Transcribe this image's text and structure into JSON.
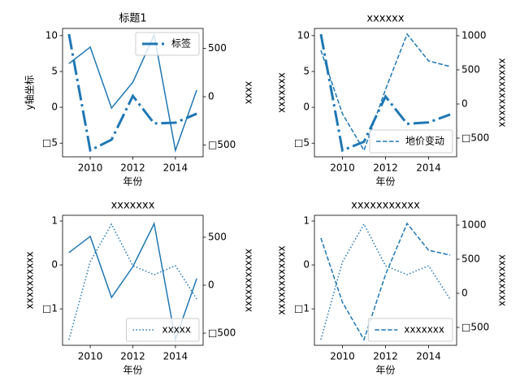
{
  "chart_data": [
    {
      "type": "line",
      "title": "标题1",
      "xlabel": "年份",
      "ylabel": "y轴坐标",
      "y2label": "xxxx",
      "x": [
        2009,
        2010,
        2011,
        2012,
        2013,
        2014,
        2015
      ],
      "xlim": [
        2008.7,
        2015.3
      ],
      "xticks": [
        2010,
        2012,
        2014
      ],
      "ylim": [
        -6.9,
        11.0
      ],
      "yticks": [
        {
          "value": -5,
          "label": "□5"
        },
        0,
        5,
        10
      ],
      "y2lim": [
        -622,
        706
      ],
      "y2ticks": [
        {
          "value": -500,
          "label": "□500"
        },
        0,
        500
      ],
      "legend": "upper right",
      "series": [
        {
          "color": "#1f77b4",
          "style": "solid",
          "width": 1.5,
          "values": [
            6.1,
            8.4,
            -0.1,
            3.5,
            10.1,
            -6.0,
            2.4
          ]
        },
        {
          "name": "标签",
          "color": "#1f77b4",
          "style": "dashdot",
          "width": 3,
          "axis": "y2",
          "values": [
            647,
            -555,
            -445,
            8,
            -277,
            -269,
            -176
          ]
        }
      ]
    },
    {
      "type": "line",
      "title": "xxxxxx",
      "xlabel": "年份",
      "ylabel": "xxxxxxx",
      "y2label": "xxxxxxxxxxxx",
      "x": [
        2009,
        2010,
        2011,
        2012,
        2013,
        2014,
        2015
      ],
      "xlim": [
        2008.7,
        2015.3
      ],
      "xticks": [
        2010,
        2012,
        2014
      ],
      "ylim": [
        -6.9,
        11.0
      ],
      "yticks": [
        {
          "value": -5,
          "label": "□5"
        },
        0,
        5,
        10
      ],
      "y2lim": [
        -774,
        1107
      ],
      "y2ticks": [
        {
          "value": -500,
          "label": "□500"
        },
        0,
        500,
        1000
      ],
      "legend": "lower right",
      "series": [
        {
          "color": "#1f77b4",
          "style": "dashdot",
          "width": 3,
          "values": [
            10.2,
            -6.0,
            -4.8,
            1.5,
            -2.3,
            -2.1,
            -1.0
          ]
        },
        {
          "name": "地价变动",
          "color": "#1f77b4",
          "style": "dashed",
          "width": 1.5,
          "axis": "y2",
          "values": [
            786,
            -143,
            -679,
            214,
            1024,
            631,
            548
          ]
        }
      ]
    },
    {
      "type": "line",
      "title": "xxxxxxx",
      "xlabel": "年份",
      "ylabel": "xxxxxxxxxx",
      "y2label": "xxxxxxxxxxx",
      "x": [
        2009,
        2010,
        2011,
        2012,
        2013,
        2014,
        2015
      ],
      "xlim": [
        2008.7,
        2015.3
      ],
      "xticks": [
        2010,
        2012,
        2014
      ],
      "ylim": [
        -1.83,
        1.13
      ],
      "yticks": [
        {
          "value": -1,
          "label": "□1"
        },
        0,
        1
      ],
      "y2lim": [
        -627,
        729
      ],
      "y2ticks": [
        {
          "value": -500,
          "label": "□500"
        },
        0,
        500
      ],
      "legend": "lower right",
      "series": [
        {
          "color": "#1f77b4",
          "style": "solid",
          "width": 1.5,
          "values": [
            0.28,
            0.65,
            -0.74,
            -0.04,
            0.94,
            -1.7,
            -0.31
          ]
        },
        {
          "name": "xxxxx",
          "color": "#1f77b4",
          "style": "dotted",
          "width": 1.5,
          "axis": "y2",
          "values": [
            -568,
            246,
            636,
            203,
            110,
            203,
            -144
          ]
        }
      ]
    },
    {
      "type": "line",
      "title": "xxxxxxxxxxx",
      "xlabel": "年份",
      "ylabel": "xxxxxxxxxxxx",
      "y2label": "xxxxxxxxx",
      "x": [
        2009,
        2010,
        2011,
        2012,
        2013,
        2014,
        2015
      ],
      "xlim": [
        2008.7,
        2015.3
      ],
      "xticks": [
        2010,
        2012,
        2014
      ],
      "ylim": [
        -1.83,
        1.13
      ],
      "yticks": [
        {
          "value": -1,
          "label": "□1"
        },
        0,
        1
      ],
      "y2lim": [
        -762,
        1143
      ],
      "y2ticks": [
        {
          "value": -500,
          "label": "□500"
        },
        0,
        500,
        1000
      ],
      "legend": "lower right",
      "series": [
        {
          "color": "#1f77b4",
          "style": "dotted",
          "width": 1.5,
          "values": [
            -1.7,
            0.07,
            0.93,
            -0.02,
            -0.22,
            -0.02,
            -0.78
          ]
        },
        {
          "name": "xxxxxxx",
          "color": "#1f77b4",
          "style": "dashed",
          "width": 1.5,
          "axis": "y2",
          "values": [
            810,
            -131,
            -679,
            274,
            1024,
            631,
            560
          ]
        }
      ]
    }
  ]
}
